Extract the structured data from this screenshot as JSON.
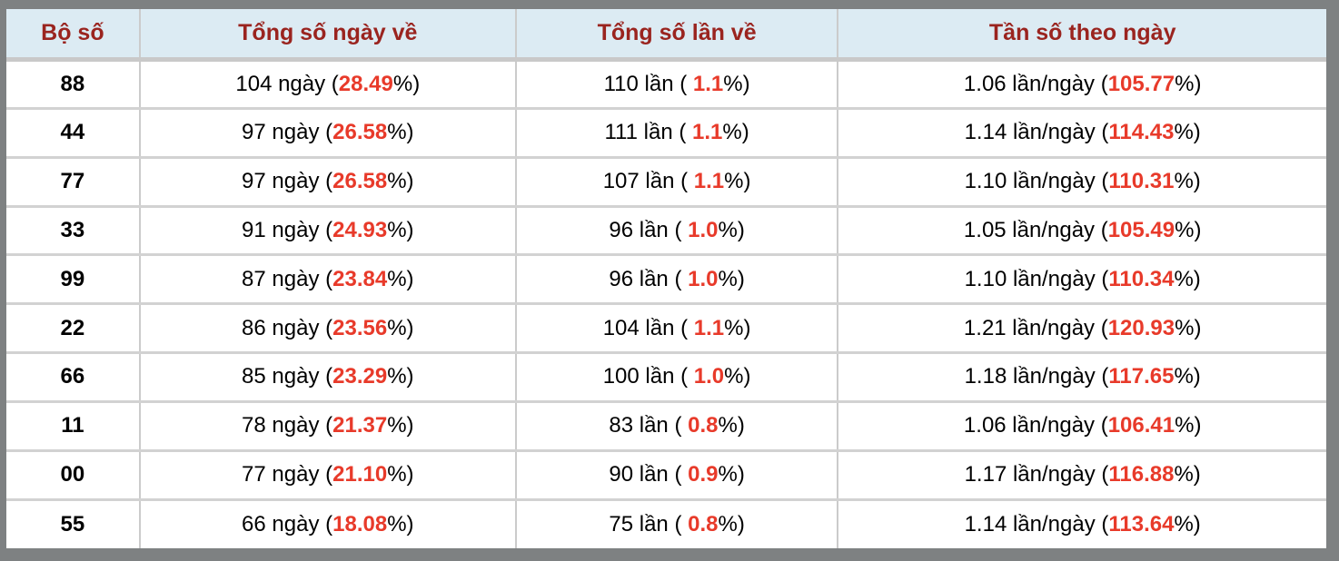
{
  "table": {
    "headers": [
      {
        "label": "Bộ số"
      },
      {
        "label": "Tổng số ngày về"
      },
      {
        "label": "Tổng số lần về"
      },
      {
        "label": "Tần số theo ngày"
      }
    ],
    "rows": [
      {
        "pair": "88",
        "days": {
          "text": "104 ngày (",
          "red": "28.49",
          "tail": "%)"
        },
        "times": {
          "text": "110 lần ( ",
          "red": "1.1",
          "tail": "%)"
        },
        "freq": {
          "text": "1.06 lần/ngày (",
          "red": "105.77",
          "tail": "%)"
        }
      },
      {
        "pair": "44",
        "days": {
          "text": "97 ngày (",
          "red": "26.58",
          "tail": "%)"
        },
        "times": {
          "text": "111 lần ( ",
          "red": "1.1",
          "tail": "%)"
        },
        "freq": {
          "text": "1.14 lần/ngày (",
          "red": "114.43",
          "tail": "%)"
        }
      },
      {
        "pair": "77",
        "days": {
          "text": "97 ngày (",
          "red": "26.58",
          "tail": "%)"
        },
        "times": {
          "text": "107 lần ( ",
          "red": "1.1",
          "tail": "%)"
        },
        "freq": {
          "text": "1.10 lần/ngày (",
          "red": "110.31",
          "tail": "%)"
        }
      },
      {
        "pair": "33",
        "days": {
          "text": "91 ngày (",
          "red": "24.93",
          "tail": "%)"
        },
        "times": {
          "text": "96 lần ( ",
          "red": "1.0",
          "tail": "%)"
        },
        "freq": {
          "text": "1.05 lần/ngày (",
          "red": "105.49",
          "tail": "%)"
        }
      },
      {
        "pair": "99",
        "days": {
          "text": "87 ngày (",
          "red": "23.84",
          "tail": "%)"
        },
        "times": {
          "text": "96 lần ( ",
          "red": "1.0",
          "tail": "%)"
        },
        "freq": {
          "text": "1.10 lần/ngày (",
          "red": "110.34",
          "tail": "%)"
        }
      },
      {
        "pair": "22",
        "days": {
          "text": "86 ngày (",
          "red": "23.56",
          "tail": "%)"
        },
        "times": {
          "text": "104 lần ( ",
          "red": "1.1",
          "tail": "%)"
        },
        "freq": {
          "text": "1.21 lần/ngày (",
          "red": "120.93",
          "tail": "%)"
        }
      },
      {
        "pair": "66",
        "days": {
          "text": "85 ngày (",
          "red": "23.29",
          "tail": "%)"
        },
        "times": {
          "text": "100 lần ( ",
          "red": "1.0",
          "tail": "%)"
        },
        "freq": {
          "text": "1.18 lần/ngày (",
          "red": "117.65",
          "tail": "%)"
        }
      },
      {
        "pair": "11",
        "days": {
          "text": "78 ngày (",
          "red": "21.37",
          "tail": "%)"
        },
        "times": {
          "text": "83 lần ( ",
          "red": "0.8",
          "tail": "%)"
        },
        "freq": {
          "text": "1.06 lần/ngày (",
          "red": "106.41",
          "tail": "%)"
        }
      },
      {
        "pair": "00",
        "days": {
          "text": "77 ngày (",
          "red": "21.10",
          "tail": "%)"
        },
        "times": {
          "text": "90 lần ( ",
          "red": "0.9",
          "tail": "%)"
        },
        "freq": {
          "text": "1.17 lần/ngày (",
          "red": "116.88",
          "tail": "%)"
        }
      },
      {
        "pair": "55",
        "days": {
          "text": "66 ngày (",
          "red": "18.08",
          "tail": "%)"
        },
        "times": {
          "text": "75 lần ( ",
          "red": "0.8",
          "tail": "%)"
        },
        "freq": {
          "text": "1.14 lần/ngày (",
          "red": "113.64",
          "tail": "%)"
        }
      }
    ]
  },
  "colors": {
    "frame": "#7e8182",
    "header_bg": "#dcebf3",
    "header_text": "#9a241f",
    "highlight_red": "#e83a2a",
    "separator_vertical": "#cbcbcb",
    "separator_horizontal": "#d2d2d2",
    "row_bg": "#ffffff",
    "text": "#000000"
  }
}
